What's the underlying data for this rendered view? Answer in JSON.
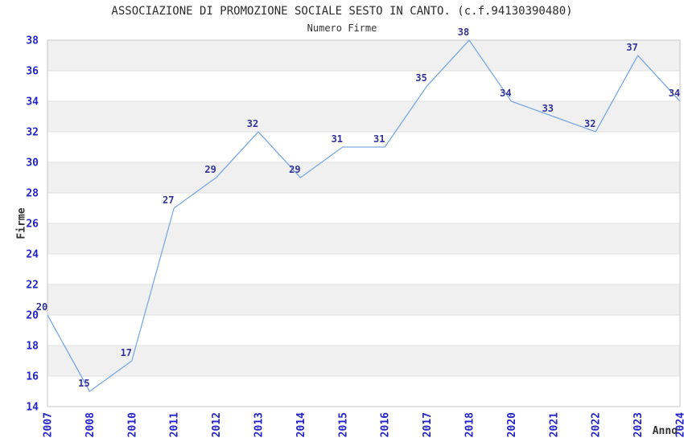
{
  "header": {
    "title": "ASSOCIAZIONE DI PROMOZIONE SOCIALE SESTO IN CANTO. (c.f.94130390480)",
    "subtitle": "Numero Firme"
  },
  "chart_data": {
    "type": "line",
    "title": "ASSOCIAZIONE DI PROMOZIONE SOCIALE SESTO IN CANTO. (c.f.94130390480)",
    "subtitle": "Numero Firme",
    "xlabel": "Anno",
    "ylabel": "Firme",
    "categories": [
      "2007",
      "2008",
      "2010",
      "2011",
      "2012",
      "2013",
      "2014",
      "2015",
      "2016",
      "2017",
      "2018",
      "2020",
      "2021",
      "2022",
      "2023",
      "2024"
    ],
    "values": [
      20,
      15,
      17,
      27,
      29,
      32,
      29,
      31,
      31,
      35,
      38,
      34,
      33,
      32,
      37,
      34
    ],
    "ylim": [
      14,
      38
    ],
    "ytick_step": 2,
    "yticks": [
      14,
      16,
      18,
      20,
      22,
      24,
      26,
      28,
      30,
      32,
      34,
      36,
      38
    ],
    "grid": "horizontal-bands-alternating",
    "legend": "none",
    "data_labels_visible": true,
    "colors": {
      "line": "#7CA9E0",
      "tick_label": "#2323CC",
      "data_label": "#333399",
      "band": "#F0F0F0",
      "gridline": "#E0E0E0",
      "plot_border": "#C6C6C6",
      "text": "#333333",
      "background": "#FFFFFF"
    }
  }
}
